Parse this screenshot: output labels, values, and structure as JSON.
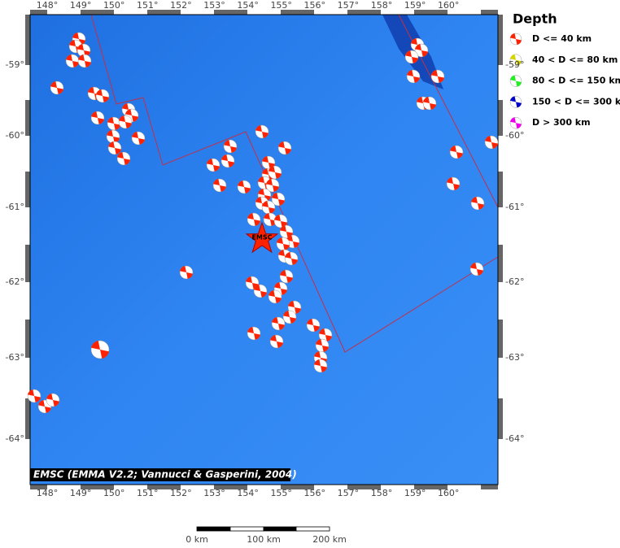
{
  "map": {
    "lon_labels": [
      "148°",
      "149°",
      "150°",
      "151°",
      "152°",
      "153°",
      "154°",
      "155°",
      "156°",
      "157°",
      "158°",
      "159°",
      "160°"
    ],
    "lat_labels": [
      "-59°",
      "-60°",
      "-61°",
      "-62°",
      "-63°",
      "-64°"
    ],
    "epicenter_label": "EMSC",
    "attribution": "EMSC (EMMA V2.2; Vannucci & Gasperini, 2004)"
  },
  "legend": {
    "title": "Depth",
    "entries": [
      {
        "label": "D <= 40 km",
        "color": "#ff2200"
      },
      {
        "label": "40 < D <= 80 km",
        "color": "#d4d400"
      },
      {
        "label": "80 < D <= 150 km",
        "color": "#22ee22"
      },
      {
        "label": "150 < D <= 300 km",
        "color": "#0000cc"
      },
      {
        "label": "D > 300 km",
        "color": "#ee00ee"
      }
    ]
  },
  "scale_bar": {
    "labels": [
      "0 km",
      "100 km",
      "200 km"
    ]
  }
}
